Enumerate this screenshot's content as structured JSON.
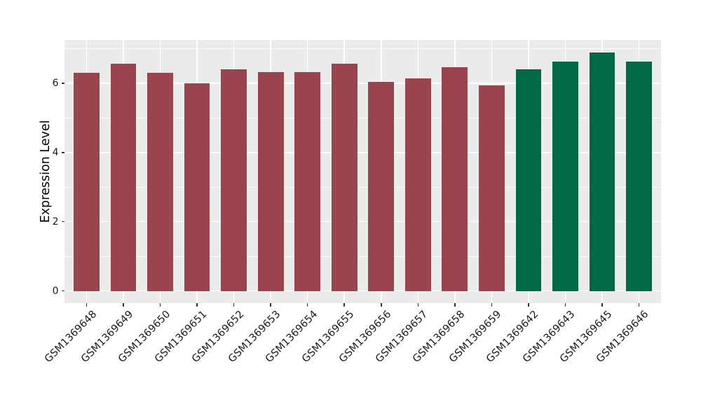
{
  "chart_data": {
    "type": "bar",
    "title": "",
    "xlabel": "",
    "ylabel": "Expression Level",
    "categories": [
      "GSM1369648",
      "GSM1369649",
      "GSM1369650",
      "GSM1369651",
      "GSM1369652",
      "GSM1369653",
      "GSM1369654",
      "GSM1369655",
      "GSM1369656",
      "GSM1369657",
      "GSM1369658",
      "GSM1369659",
      "GSM1369642",
      "GSM1369643",
      "GSM1369645",
      "GSM1369646"
    ],
    "values": [
      6.29,
      6.57,
      6.31,
      6.0,
      6.41,
      6.32,
      6.33,
      6.57,
      6.04,
      6.14,
      6.47,
      5.94,
      6.41,
      6.62,
      6.89,
      6.62
    ],
    "bar_groups": [
      "red",
      "red",
      "red",
      "red",
      "red",
      "red",
      "red",
      "red",
      "red",
      "red",
      "red",
      "red",
      "green",
      "green",
      "green",
      "green"
    ],
    "group_colors": {
      "red": "#9a4450",
      "green": "#016946"
    },
    "yticks": [
      0,
      2,
      4,
      6
    ],
    "yticks_minor": [
      1,
      3,
      5,
      7
    ],
    "ylim": [
      -0.35,
      7.25
    ],
    "legend": "none",
    "grid": "horizontal major+minor, vertical major at categories",
    "panel_bg": "#ebebeb",
    "grid_color": "#ffffff",
    "tick_color": "#333333",
    "tick_label_color": "#1a1a1a"
  }
}
